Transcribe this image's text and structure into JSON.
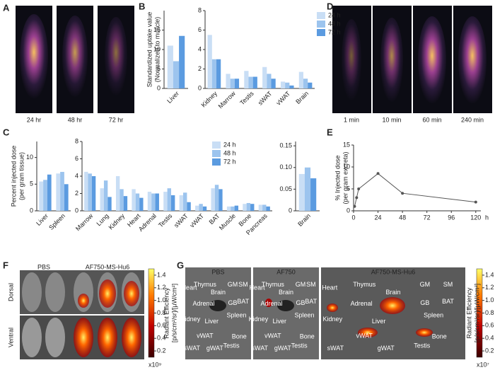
{
  "panel_letters": [
    "A",
    "B",
    "C",
    "D",
    "E",
    "F",
    "G"
  ],
  "panel_a": {
    "labels": [
      "24 hr",
      "48 hr",
      "72 hr"
    ]
  },
  "panel_d": {
    "labels": [
      "1 min",
      "10 min",
      "60 min",
      "240 min"
    ]
  },
  "panel_f": {
    "columns": [
      "PBS",
      "AF750-MS-Hu6"
    ],
    "rows": [
      "Dorsal",
      "Ventral"
    ],
    "colorbar": {
      "title": "Radiant Efficiency",
      "units": "[p/s/cm²/sr]/[µW/cm²]",
      "multiplier": "x10⁹",
      "ticks": [
        {
          "value": 1.4,
          "label": "1.4"
        },
        {
          "value": 1.2,
          "label": "1.2"
        },
        {
          "value": 1,
          "label": "1.0"
        },
        {
          "value": 0.8,
          "label": "0.8"
        },
        {
          "value": 0.6,
          "label": "0.6"
        },
        {
          "value": 0.4,
          "label": "0.4"
        },
        {
          "value": 0.2,
          "label": "0.2"
        }
      ],
      "lim": [
        0.1,
        1.5
      ]
    }
  },
  "panel_g": {
    "columns": [
      "PBS",
      "AF750",
      "AF750-MS-Hu6"
    ],
    "organ_labels": [
      "Heart",
      "Thymus",
      "Brain",
      "GM",
      "SM",
      "BAT",
      "Adrenal",
      "GB",
      "Kidney",
      "Liver",
      "Spleen",
      "Bone",
      "sWAT",
      "vWAT",
      "gWAT",
      "Testis"
    ],
    "colorbar": {
      "title": "Radiant Efficiency",
      "units": "[p/s/cm²/sr]/[µW/cm²]",
      "multiplier": "x10⁷",
      "ticks": [
        {
          "value": 1.4,
          "label": "1.4"
        },
        {
          "value": 1.2,
          "label": "1.2"
        },
        {
          "value": 1,
          "label": "1.0"
        },
        {
          "value": 0.8,
          "label": "0.8"
        },
        {
          "value": 0.6,
          "label": "0.6"
        },
        {
          "value": 0.4,
          "label": "0.4"
        },
        {
          "value": 0.2,
          "label": "0.2"
        }
      ],
      "lim": [
        0.1,
        1.5
      ]
    }
  },
  "chart_data": [
    {
      "type": "bar",
      "y_label": "Standardized uptake value",
      "y_label_2": "(Normalized to muscle)",
      "categories": [
        "Liver"
      ],
      "series": [
        {
          "color": "#c9def5",
          "values": [
            11
          ]
        },
        {
          "color": "#9cc4ee",
          "values": [
            7
          ]
        },
        {
          "color": "#5b9be0",
          "values": [
            13.5
          ]
        }
      ],
      "ylim": [
        0,
        20
      ],
      "yticks": [
        0,
        5,
        10,
        15
      ]
    },
    {
      "type": "bar",
      "categories": [
        "Kidney",
        "Marrow",
        "Testis",
        "sWAT",
        "vWAT",
        "Brain"
      ],
      "series": [
        {
          "name": "24 h",
          "color": "#c9def5",
          "values": [
            5.5,
            1.5,
            1.8,
            2.2,
            0.7,
            1.7
          ]
        },
        {
          "name": "48 h",
          "color": "#9cc4ee",
          "values": [
            3,
            1,
            1.2,
            1.5,
            0.6,
            1
          ]
        },
        {
          "name": "72 h",
          "color": "#5b9be0",
          "values": [
            3,
            1,
            1.2,
            1,
            0.3,
            0.6
          ]
        }
      ],
      "ylim": [
        0,
        8
      ],
      "yticks": [
        0,
        2,
        4,
        6,
        8
      ]
    },
    {
      "type": "bar",
      "y_label": "Percent injected dose",
      "y_label_2": "(per gram tissue)",
      "categories": [
        "Liver",
        "Spleen"
      ],
      "series": [
        {
          "color": "#c9def5",
          "values": [
            5.5,
            7
          ]
        },
        {
          "color": "#9cc4ee",
          "values": [
            5.8,
            7.3
          ]
        },
        {
          "color": "#5b9be0",
          "values": [
            6.8,
            5
          ]
        }
      ],
      "ylim": [
        0,
        13
      ],
      "yticks": [
        0,
        5,
        10
      ]
    },
    {
      "type": "bar",
      "categories": [
        "Marrow",
        "Lung",
        "Kidney",
        "Heart",
        "Adrenal",
        "Testis",
        "sWAT",
        "vWAT",
        "BAT",
        "Muscle",
        "Bone",
        "Pancreas"
      ],
      "series": [
        {
          "name": "24 h",
          "color": "#c9def5",
          "values": [
            4.5,
            2.6,
            4,
            2.5,
            2.2,
            2.2,
            1.8,
            0.6,
            2.6,
            0.5,
            0.8,
            0.7
          ]
        },
        {
          "name": "48 h",
          "color": "#9cc4ee",
          "values": [
            4.3,
            3.5,
            2.5,
            2,
            2,
            2.6,
            2.1,
            0.8,
            3,
            0.5,
            0.9,
            0.7
          ]
        },
        {
          "name": "72 h",
          "color": "#5b9be0",
          "values": [
            4,
            1.6,
            1.7,
            1.5,
            2,
            1.8,
            1,
            0.5,
            2.5,
            0.6,
            0.8,
            0.5
          ]
        }
      ],
      "ylim": [
        0,
        8
      ],
      "yticks": [
        0,
        2,
        4,
        6,
        8
      ]
    },
    {
      "type": "bar",
      "categories": [
        "Brain"
      ],
      "series": [
        {
          "color": "#c9def5",
          "values": [
            0.085
          ]
        },
        {
          "color": "#9cc4ee",
          "values": [
            0.1
          ]
        },
        {
          "color": "#5b9be0",
          "values": [
            0.075
          ]
        }
      ],
      "ylim": [
        0,
        0.16
      ],
      "yticks": [
        0,
        0.05,
        {
          "value": 0.1,
          "label": "0.10"
        },
        0.15
      ]
    },
    {
      "type": "line",
      "y_label": "% Injected dose",
      "y_label_2": "(per gram excreta)",
      "x_unit": "h",
      "series": [
        {
          "color": "#555555",
          "x": [
            1,
            3,
            5,
            24,
            48,
            120
          ],
          "values": [
            1,
            3,
            5,
            8.5,
            4,
            2
          ]
        }
      ],
      "xlim": [
        0,
        125
      ],
      "xticks": [
        0,
        24,
        48,
        72,
        96,
        120
      ],
      "ylim": [
        0,
        15
      ],
      "yticks": [
        0,
        5,
        10,
        15
      ]
    }
  ]
}
